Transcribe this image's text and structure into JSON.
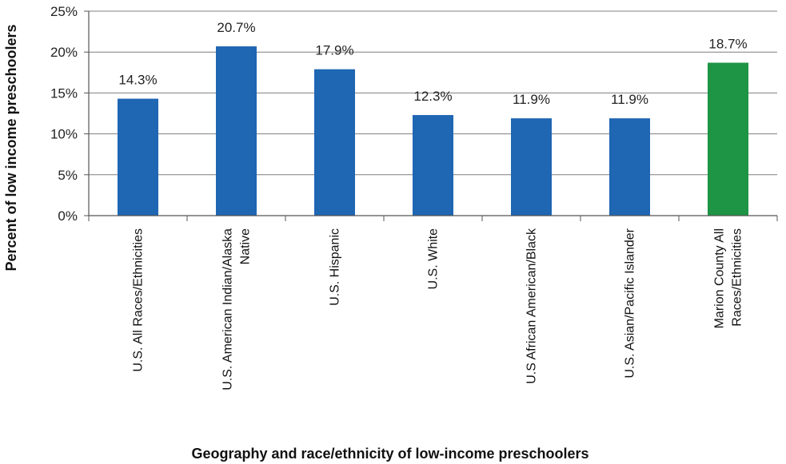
{
  "chart_data": {
    "type": "bar",
    "title": "",
    "xlabel": "Geography and race/ethnicity of low-income preschoolers",
    "ylabel": "Percent of low income preschoolers",
    "ylim": [
      0,
      25
    ],
    "yticks": [
      0,
      5,
      10,
      15,
      20,
      25
    ],
    "ytick_labels": [
      "0%",
      "5%",
      "10%",
      "15%",
      "20%",
      "25%"
    ],
    "grid": "horizontal",
    "legend": "none",
    "categories": [
      [
        "U.S. All Races/Ethnicities"
      ],
      [
        "U.S. American Indian/Alaska",
        "Native"
      ],
      [
        "U.S. Hispanic"
      ],
      [
        "U.S. White"
      ],
      [
        "U.S African American/Black"
      ],
      [
        "U.S. Asian/Pacific Islander"
      ],
      [
        "Marion County All",
        "Races/Ethnicities"
      ]
    ],
    "values": [
      14.3,
      20.7,
      17.9,
      12.3,
      11.9,
      11.9,
      18.7
    ],
    "value_labels": [
      "14.3%",
      "20.7%",
      "17.9%",
      "12.3%",
      "11.9%",
      "11.9%",
      "18.7%"
    ],
    "bar_colors": [
      "#1f66b3",
      "#1f66b3",
      "#1f66b3",
      "#1f66b3",
      "#1f66b3",
      "#1f66b3",
      "#1e9445"
    ],
    "colors": {
      "us_bar": "#1f66b3",
      "county_bar": "#1e9445",
      "gridline": "#7f7f7f",
      "axis": "#555555"
    }
  }
}
